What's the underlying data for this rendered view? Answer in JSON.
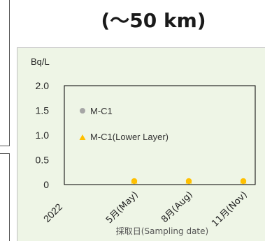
{
  "header": {
    "title": "(～50 km)"
  },
  "chart_data": {
    "type": "scatter",
    "title": "",
    "ylabel": "Bq/L",
    "xlabel": "採取日(Sampling date)",
    "ylim": [
      0,
      2.0
    ],
    "yticks": [
      "2.0",
      "1.5",
      "1.0",
      "0.5",
      "0"
    ],
    "year_label": "2022",
    "categories": [
      "5月(May)",
      "8月(Aug)",
      "11月(Nov)"
    ],
    "legend_position": "inside-top-left",
    "series": [
      {
        "name": "M-C1",
        "marker": "circle",
        "color": "#a6a6a6",
        "values": [
          0.07,
          0.07,
          0.07
        ]
      },
      {
        "name": "M-C1(Lower Layer)",
        "marker": "triangle",
        "color": "#ffc000",
        "values": [
          0.07,
          0.07,
          0.07
        ]
      }
    ]
  }
}
